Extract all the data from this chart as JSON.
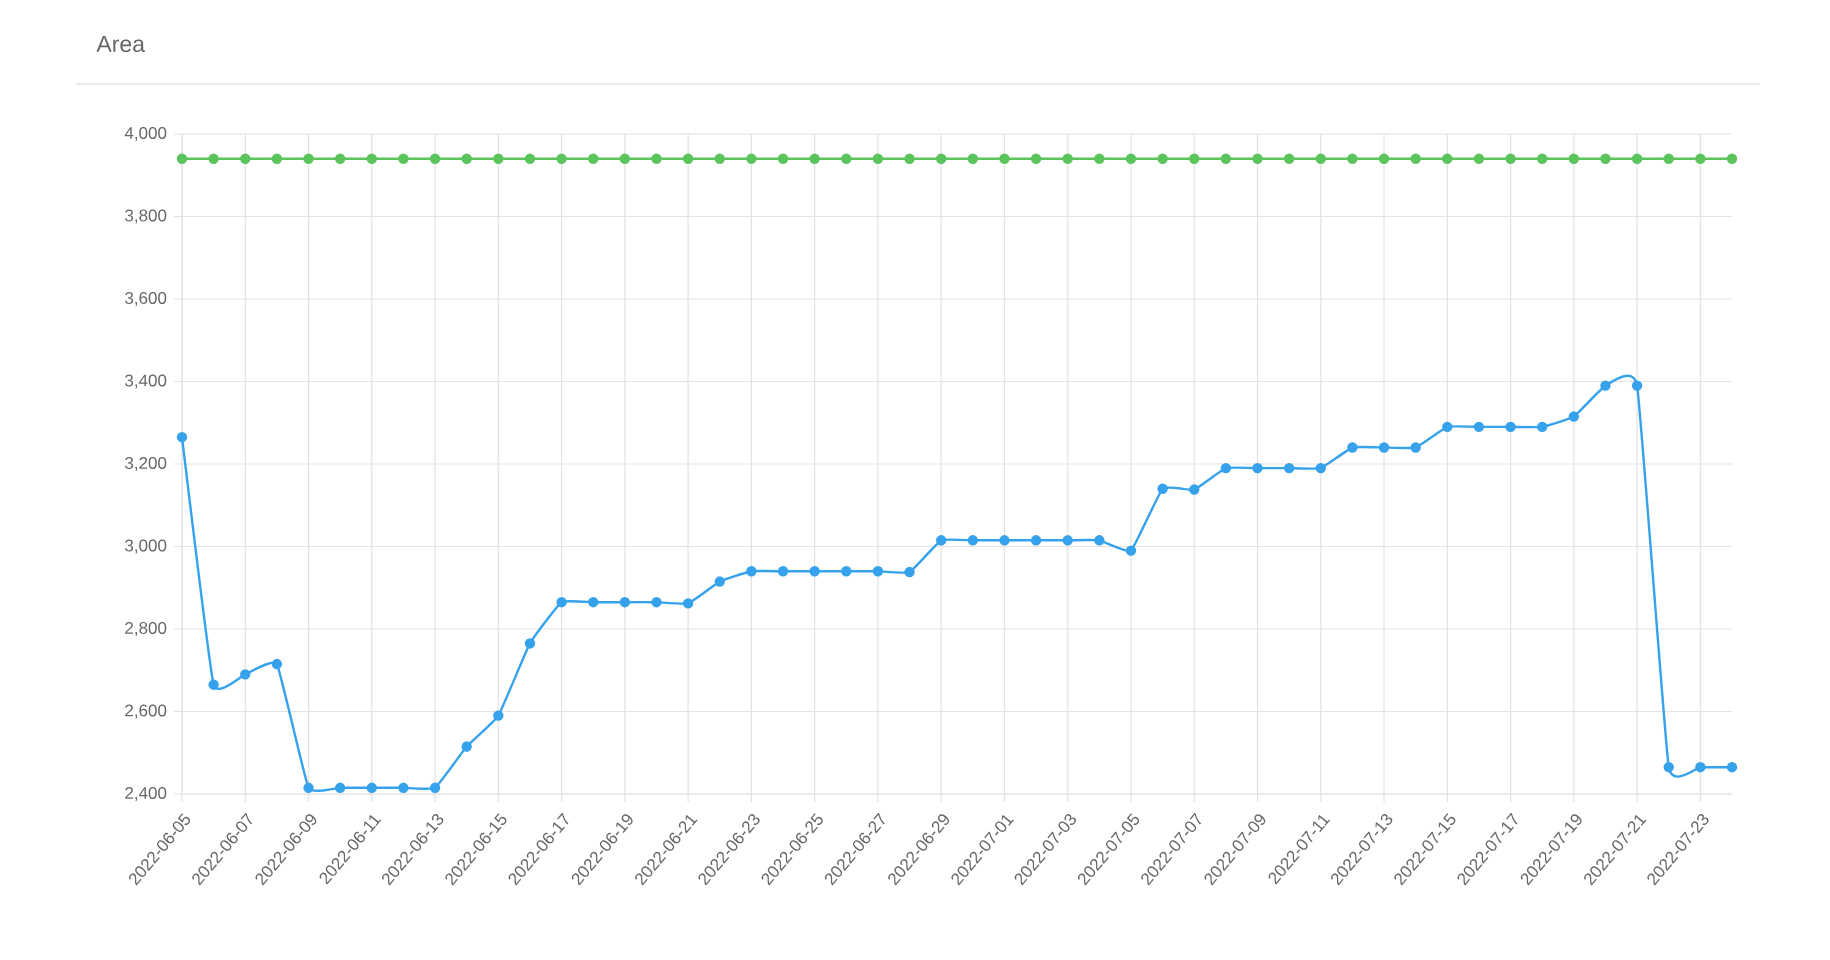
{
  "chart_data": {
    "type": "line",
    "title": "Area",
    "x": [
      "2022-06-05",
      "2022-06-06",
      "2022-06-07",
      "2022-06-08",
      "2022-06-09",
      "2022-06-10",
      "2022-06-11",
      "2022-06-12",
      "2022-06-13",
      "2022-06-14",
      "2022-06-15",
      "2022-06-16",
      "2022-06-17",
      "2022-06-18",
      "2022-06-19",
      "2022-06-20",
      "2022-06-21",
      "2022-06-22",
      "2022-06-23",
      "2022-06-24",
      "2022-06-25",
      "2022-06-26",
      "2022-06-27",
      "2022-06-28",
      "2022-06-29",
      "2022-06-30",
      "2022-07-01",
      "2022-07-02",
      "2022-07-03",
      "2022-07-04",
      "2022-07-05",
      "2022-07-06",
      "2022-07-07",
      "2022-07-08",
      "2022-07-09",
      "2022-07-10",
      "2022-07-11",
      "2022-07-12",
      "2022-07-13",
      "2022-07-14",
      "2022-07-15",
      "2022-07-16",
      "2022-07-17",
      "2022-07-18",
      "2022-07-19",
      "2022-07-20",
      "2022-07-21",
      "2022-07-22",
      "2022-07-23",
      "2022-07-24"
    ],
    "series": [
      {
        "color": "#36a2eb",
        "values": [
          3265,
          2665,
          2690,
          2715,
          2415,
          2415,
          2415,
          2415,
          2415,
          2515,
          2590,
          2765,
          2865,
          2865,
          2865,
          2865,
          2862,
          2915,
          2940,
          2940,
          2940,
          2940,
          2940,
          2938,
          3015,
          3015,
          3015,
          3015,
          3015,
          3015,
          2990,
          3140,
          3138,
          3190,
          3190,
          3190,
          3190,
          3240,
          3240,
          3240,
          3290,
          3290,
          3290,
          3290,
          3315,
          3390,
          3390,
          2465,
          2465,
          2465
        ]
      },
      {
        "color": "#5cc45c",
        "values": [
          3940,
          3940,
          3940,
          3940,
          3940,
          3940,
          3940,
          3940,
          3940,
          3940,
          3940,
          3940,
          3940,
          3940,
          3940,
          3940,
          3940,
          3940,
          3940,
          3940,
          3940,
          3940,
          3940,
          3940,
          3940,
          3940,
          3940,
          3940,
          3940,
          3940,
          3940,
          3940,
          3940,
          3940,
          3940,
          3940,
          3940,
          3940,
          3940,
          3940,
          3940,
          3940,
          3940,
          3940,
          3940,
          3940,
          3940,
          3940,
          3940,
          3940
        ]
      }
    ],
    "xlim": [
      "2022-06-05",
      "2022-07-24"
    ],
    "xticks": [
      "2022-06-05",
      "2022-06-07",
      "2022-06-09",
      "2022-06-11",
      "2022-06-13",
      "2022-06-15",
      "2022-06-17",
      "2022-06-19",
      "2022-06-21",
      "2022-06-23",
      "2022-06-25",
      "2022-06-27",
      "2022-06-29",
      "2022-07-01",
      "2022-07-03",
      "2022-07-05",
      "2022-07-07",
      "2022-07-09",
      "2022-07-11",
      "2022-07-13",
      "2022-07-15",
      "2022-07-17",
      "2022-07-19",
      "2022-07-21",
      "2022-07-23"
    ],
    "ylim": [
      2400,
      4000
    ],
    "yticks": [
      {
        "value": 2400,
        "label": "2,400"
      },
      {
        "value": 2600,
        "label": "2,600"
      },
      {
        "value": 2800,
        "label": "2,800"
      },
      {
        "value": 3000,
        "label": "3,000"
      },
      {
        "value": 3200,
        "label": "3,200"
      },
      {
        "value": 3400,
        "label": "3,400"
      },
      {
        "value": 3600,
        "label": "3,600"
      },
      {
        "value": 3800,
        "label": "3,800"
      },
      {
        "value": 4000,
        "label": "4,000"
      }
    ],
    "grid": true,
    "marker": "circle",
    "line_style": "solid"
  }
}
